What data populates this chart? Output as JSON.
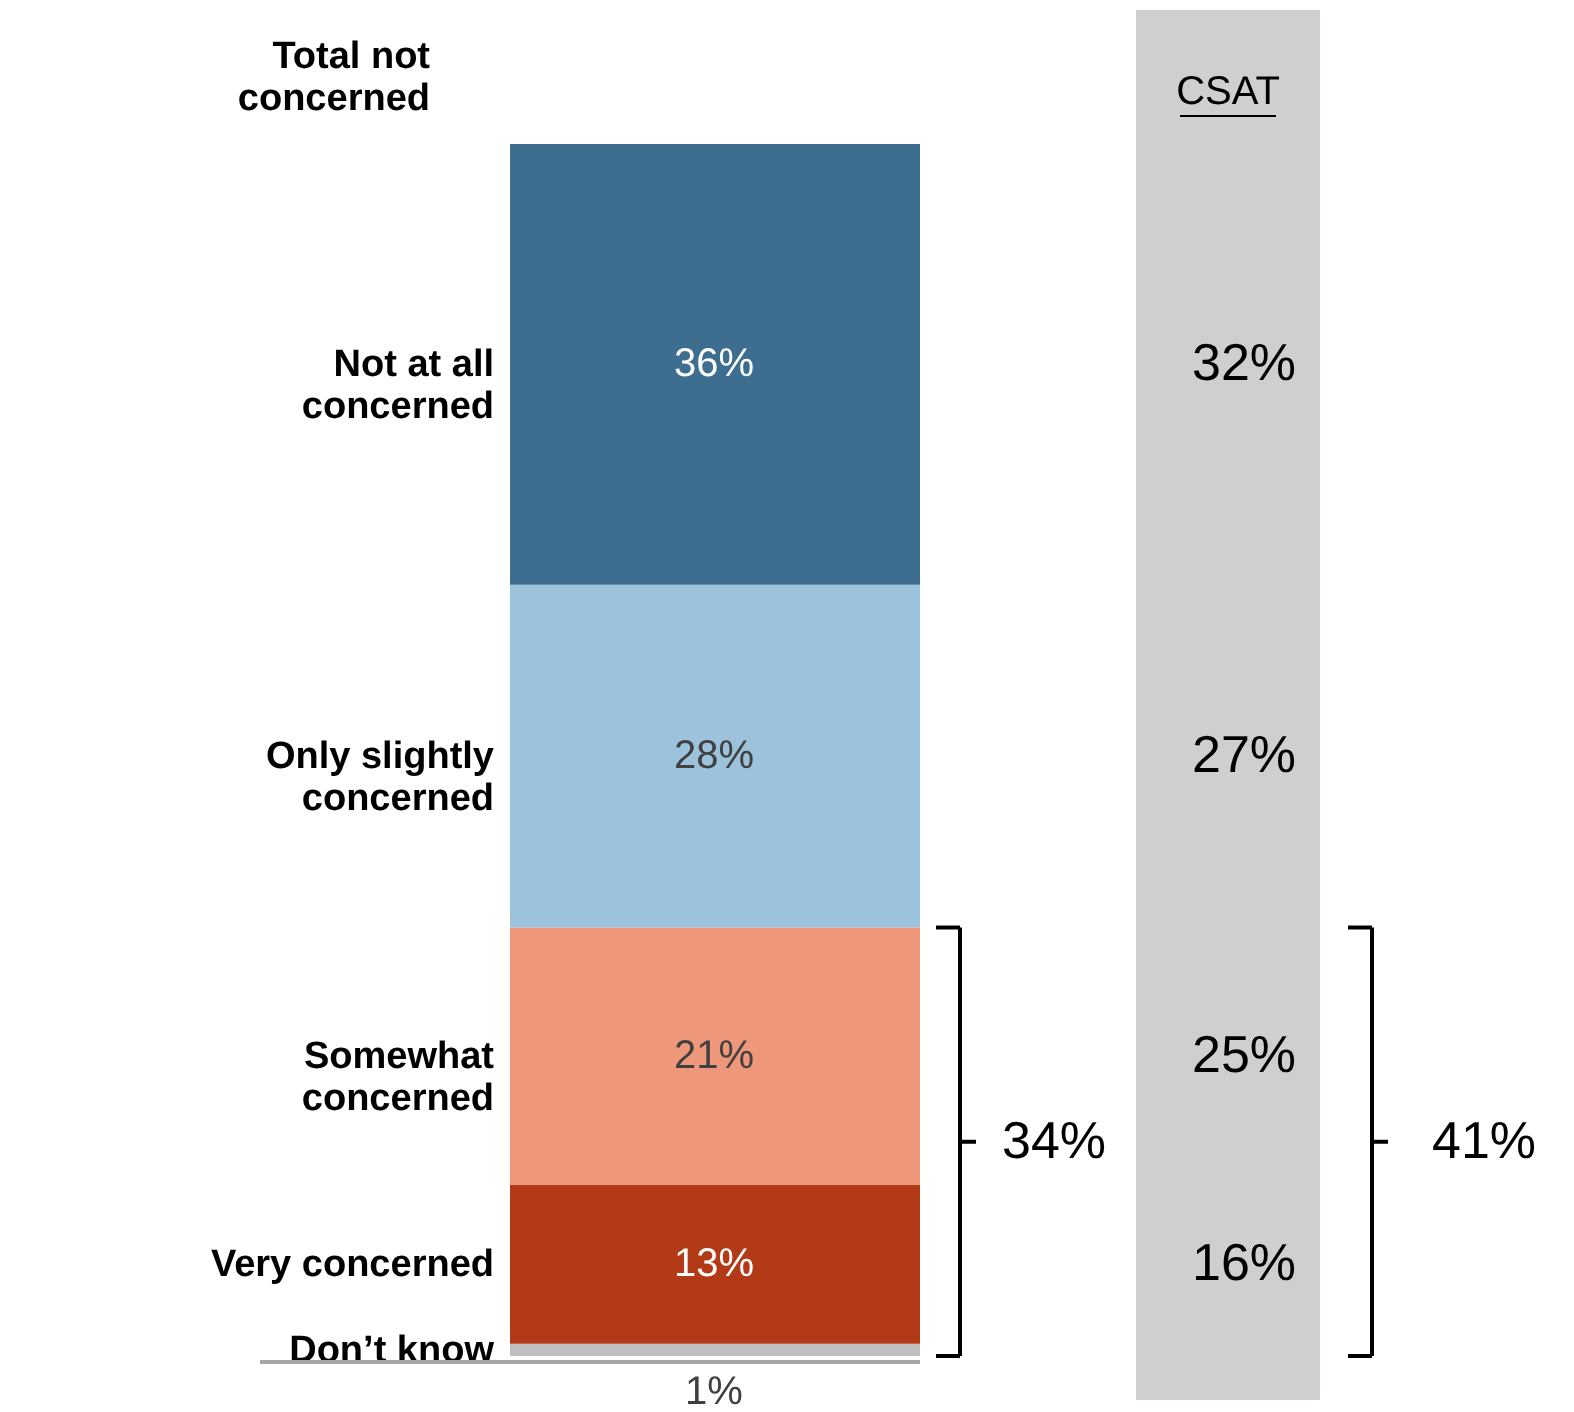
{
  "chart_data": {
    "type": "bar",
    "stacked": true,
    "categories": [
      null
    ],
    "series": [
      {
        "name": "Don’t know",
        "color": "#bfbfbf",
        "values": [
          1
        ],
        "value_labels": [
          "1%"
        ]
      },
      {
        "name": "Very concerned",
        "color": "#b33a17",
        "values": [
          13
        ],
        "value_labels": [
          "13%"
        ]
      },
      {
        "name": "Somewhat concerned",
        "color": "#ef977b",
        "values": [
          21
        ],
        "value_labels": [
          "21%"
        ]
      },
      {
        "name": "Only slightly concerned",
        "color": "#9dc3dc",
        "values": [
          28
        ],
        "value_labels": [
          "28%"
        ]
      },
      {
        "name": "Not at all concerned",
        "color": "#3d6e8f",
        "values": [
          36
        ],
        "value_labels": [
          "36%"
        ]
      }
    ],
    "annotations": [
      "Total not concerned",
      "CSAT",
      "32%",
      "27%",
      "25%",
      "16%",
      "34%",
      "41%"
    ]
  }
}
